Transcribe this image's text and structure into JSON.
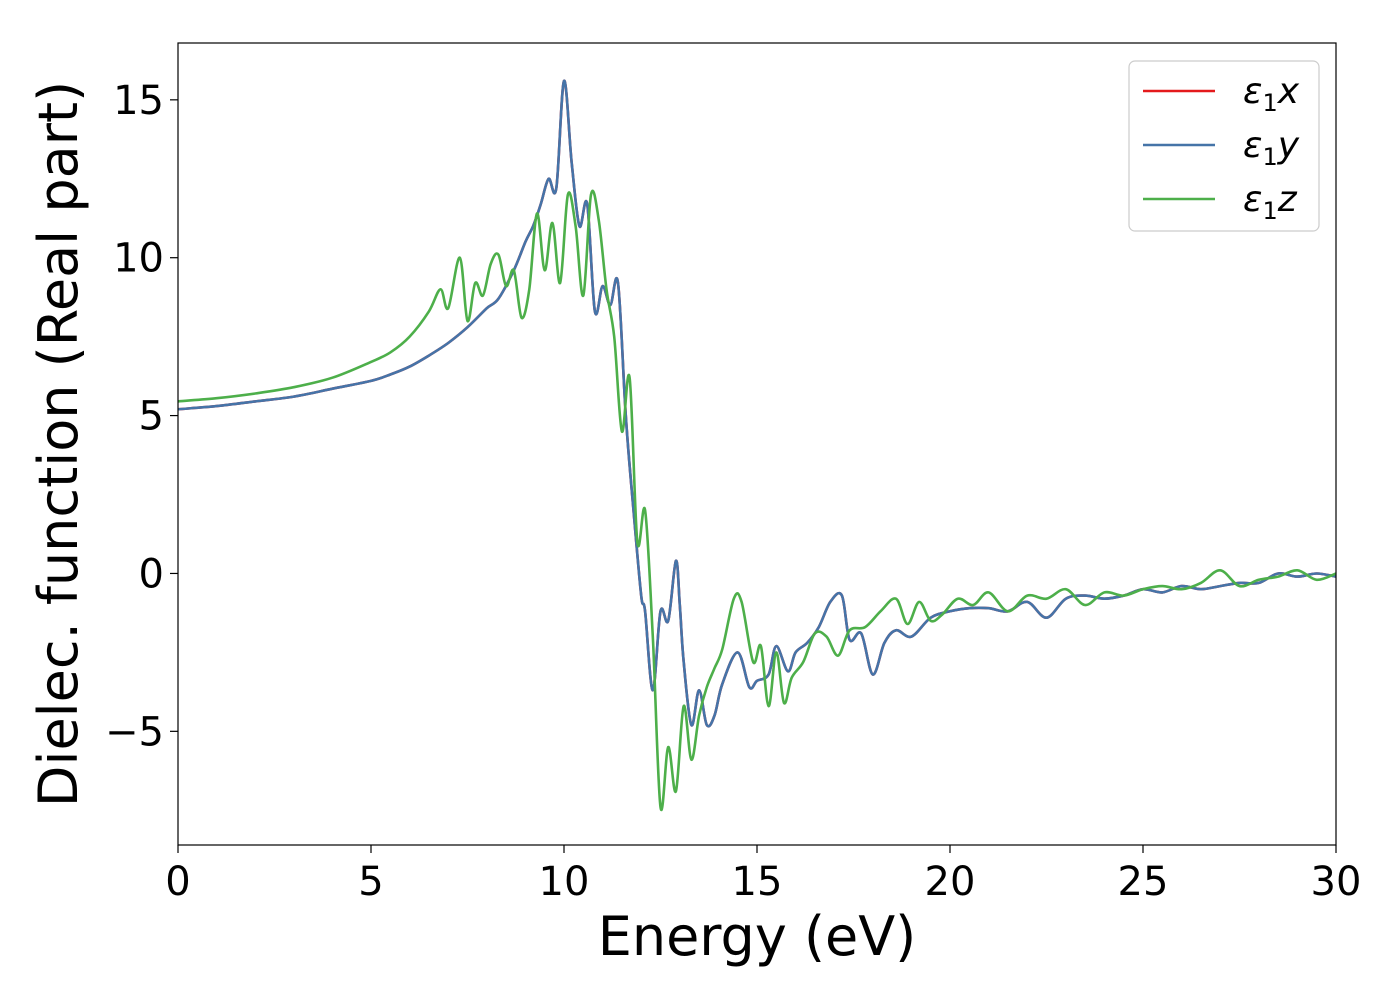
{
  "chart_data": {
    "type": "line",
    "xlabel": "Energy (eV)",
    "ylabel": "Dielec. function (Real part)",
    "xlim": [
      0,
      30
    ],
    "ylim": [
      -8.6,
      16.8
    ],
    "xticks": [
      0,
      5,
      10,
      15,
      20,
      25,
      30
    ],
    "yticks": [
      -5,
      0,
      5,
      10,
      15
    ],
    "xtick_labels": [
      "0",
      "5",
      "10",
      "15",
      "20",
      "25",
      "30"
    ],
    "ytick_labels": [
      "−5",
      "0",
      "5",
      "10",
      "15"
    ],
    "grid": false,
    "legend_position": "top-right",
    "series": [
      {
        "name_parts": [
          "ε",
          "1",
          "x"
        ],
        "color": "#e41a1c",
        "x": [
          0,
          1,
          2,
          3,
          4,
          5,
          5.5,
          6,
          6.5,
          7,
          7.5,
          8,
          8.3,
          8.7,
          9,
          9.2,
          9.4,
          9.6,
          9.8,
          10,
          10.2,
          10.4,
          10.6,
          10.8,
          11,
          11.2,
          11.4,
          11.6,
          11.8,
          12,
          12.1,
          12.3,
          12.5,
          12.7,
          12.9,
          13,
          13.1,
          13.3,
          13.5,
          13.7,
          13.9,
          14.1,
          14.5,
          14.8,
          15,
          15.3,
          15.5,
          15.8,
          16,
          16.3,
          16.6,
          16.9,
          17.2,
          17.4,
          17.7,
          18,
          18.3,
          18.6,
          19,
          19.5,
          20,
          20.5,
          21,
          21.5,
          22,
          22.5,
          23,
          23.5,
          24,
          24.5,
          25,
          25.5,
          26,
          26.5,
          27,
          27.5,
          28,
          28.5,
          29,
          29.5,
          30
        ],
        "y": [
          5.2,
          5.3,
          5.45,
          5.6,
          5.85,
          6.1,
          6.3,
          6.55,
          6.9,
          7.3,
          7.8,
          8.4,
          8.7,
          9.6,
          10.5,
          11.0,
          11.7,
          12.5,
          12.2,
          15.6,
          13.0,
          11.0,
          11.7,
          8.3,
          9.1,
          8.5,
          9.2,
          5.0,
          2.0,
          -0.7,
          -1.2,
          -3.7,
          -1.2,
          -1.5,
          0.4,
          -1.0,
          -2.8,
          -4.8,
          -3.7,
          -4.8,
          -4.5,
          -3.5,
          -2.5,
          -3.6,
          -3.4,
          -3.2,
          -2.3,
          -3.1,
          -2.5,
          -2.2,
          -1.7,
          -0.9,
          -0.7,
          -2.1,
          -1.9,
          -3.2,
          -2.2,
          -1.8,
          -2.0,
          -1.4,
          -1.2,
          -1.1,
          -1.1,
          -1.2,
          -0.9,
          -1.4,
          -0.8,
          -0.7,
          -0.8,
          -0.7,
          -0.5,
          -0.6,
          -0.4,
          -0.5,
          -0.4,
          -0.3,
          -0.3,
          0.0,
          -0.1,
          0.0,
          -0.1
        ]
      },
      {
        "name_parts": [
          "ε",
          "1",
          "y"
        ],
        "color": "#4574a8",
        "x": [
          0,
          1,
          2,
          3,
          4,
          5,
          5.5,
          6,
          6.5,
          7,
          7.5,
          8,
          8.3,
          8.7,
          9,
          9.2,
          9.4,
          9.6,
          9.8,
          10,
          10.2,
          10.4,
          10.6,
          10.8,
          11,
          11.2,
          11.4,
          11.6,
          11.8,
          12,
          12.1,
          12.3,
          12.5,
          12.7,
          12.9,
          13,
          13.1,
          13.3,
          13.5,
          13.7,
          13.9,
          14.1,
          14.5,
          14.8,
          15,
          15.3,
          15.5,
          15.8,
          16,
          16.3,
          16.6,
          16.9,
          17.2,
          17.4,
          17.7,
          18,
          18.3,
          18.6,
          19,
          19.5,
          20,
          20.5,
          21,
          21.5,
          22,
          22.5,
          23,
          23.5,
          24,
          24.5,
          25,
          25.5,
          26,
          26.5,
          27,
          27.5,
          28,
          28.5,
          29,
          29.5,
          30
        ],
        "y": [
          5.2,
          5.3,
          5.45,
          5.6,
          5.85,
          6.1,
          6.3,
          6.55,
          6.9,
          7.3,
          7.8,
          8.4,
          8.7,
          9.6,
          10.5,
          11.0,
          11.7,
          12.5,
          12.2,
          15.6,
          13.0,
          11.0,
          11.7,
          8.3,
          9.1,
          8.5,
          9.2,
          5.0,
          2.0,
          -0.7,
          -1.2,
          -3.7,
          -1.2,
          -1.5,
          0.4,
          -1.0,
          -2.8,
          -4.8,
          -3.7,
          -4.8,
          -4.5,
          -3.5,
          -2.5,
          -3.6,
          -3.4,
          -3.2,
          -2.3,
          -3.1,
          -2.5,
          -2.2,
          -1.7,
          -0.9,
          -0.7,
          -2.1,
          -1.9,
          -3.2,
          -2.2,
          -1.8,
          -2.0,
          -1.4,
          -1.2,
          -1.1,
          -1.1,
          -1.2,
          -0.9,
          -1.4,
          -0.8,
          -0.7,
          -0.8,
          -0.7,
          -0.5,
          -0.6,
          -0.4,
          -0.5,
          -0.4,
          -0.3,
          -0.3,
          0.0,
          -0.1,
          0.0,
          -0.1
        ]
      },
      {
        "name_parts": [
          "ε",
          "1",
          "z"
        ],
        "color": "#4daf4a",
        "x": [
          0,
          1,
          2,
          3,
          4,
          5,
          5.5,
          6,
          6.5,
          6.8,
          7,
          7.3,
          7.5,
          7.7,
          7.9,
          8.1,
          8.3,
          8.5,
          8.7,
          8.9,
          9.1,
          9.3,
          9.5,
          9.7,
          9.9,
          10.1,
          10.3,
          10.5,
          10.7,
          10.9,
          11.1,
          11.3,
          11.5,
          11.7,
          11.9,
          12.1,
          12.3,
          12.5,
          12.7,
          12.9,
          13.1,
          13.3,
          13.5,
          13.7,
          13.9,
          14.1,
          14.4,
          14.6,
          14.9,
          15.1,
          15.3,
          15.5,
          15.7,
          15.9,
          16.2,
          16.5,
          16.8,
          17.1,
          17.4,
          17.8,
          18.2,
          18.6,
          18.9,
          19.2,
          19.5,
          19.8,
          20.2,
          20.6,
          21,
          21.5,
          22,
          22.5,
          23,
          23.5,
          24,
          24.5,
          25,
          25.5,
          26,
          26.5,
          27,
          27.5,
          28,
          28.5,
          29,
          29.5,
          30
        ],
        "y": [
          5.45,
          5.55,
          5.7,
          5.9,
          6.2,
          6.7,
          7.0,
          7.5,
          8.3,
          9.0,
          8.4,
          10.0,
          8.0,
          9.2,
          8.8,
          9.8,
          10.1,
          9.1,
          9.6,
          8.1,
          9.0,
          11.4,
          9.6,
          11.1,
          9.2,
          12.0,
          11.0,
          8.8,
          12.0,
          11.2,
          9.0,
          7.5,
          4.5,
          6.2,
          1.0,
          2.0,
          -2.0,
          -7.4,
          -5.5,
          -6.9,
          -4.2,
          -5.9,
          -4.5,
          -3.6,
          -3.0,
          -2.4,
          -0.8,
          -0.9,
          -2.8,
          -2.3,
          -4.2,
          -2.5,
          -4.1,
          -3.3,
          -2.8,
          -1.9,
          -2.0,
          -2.6,
          -1.8,
          -1.7,
          -1.2,
          -0.8,
          -1.6,
          -0.9,
          -1.5,
          -1.3,
          -0.8,
          -1.0,
          -0.6,
          -1.2,
          -0.7,
          -0.8,
          -0.5,
          -1.0,
          -0.6,
          -0.7,
          -0.5,
          -0.4,
          -0.5,
          -0.3,
          0.1,
          -0.4,
          -0.2,
          -0.1,
          0.1,
          -0.2,
          0.0
        ]
      }
    ]
  }
}
